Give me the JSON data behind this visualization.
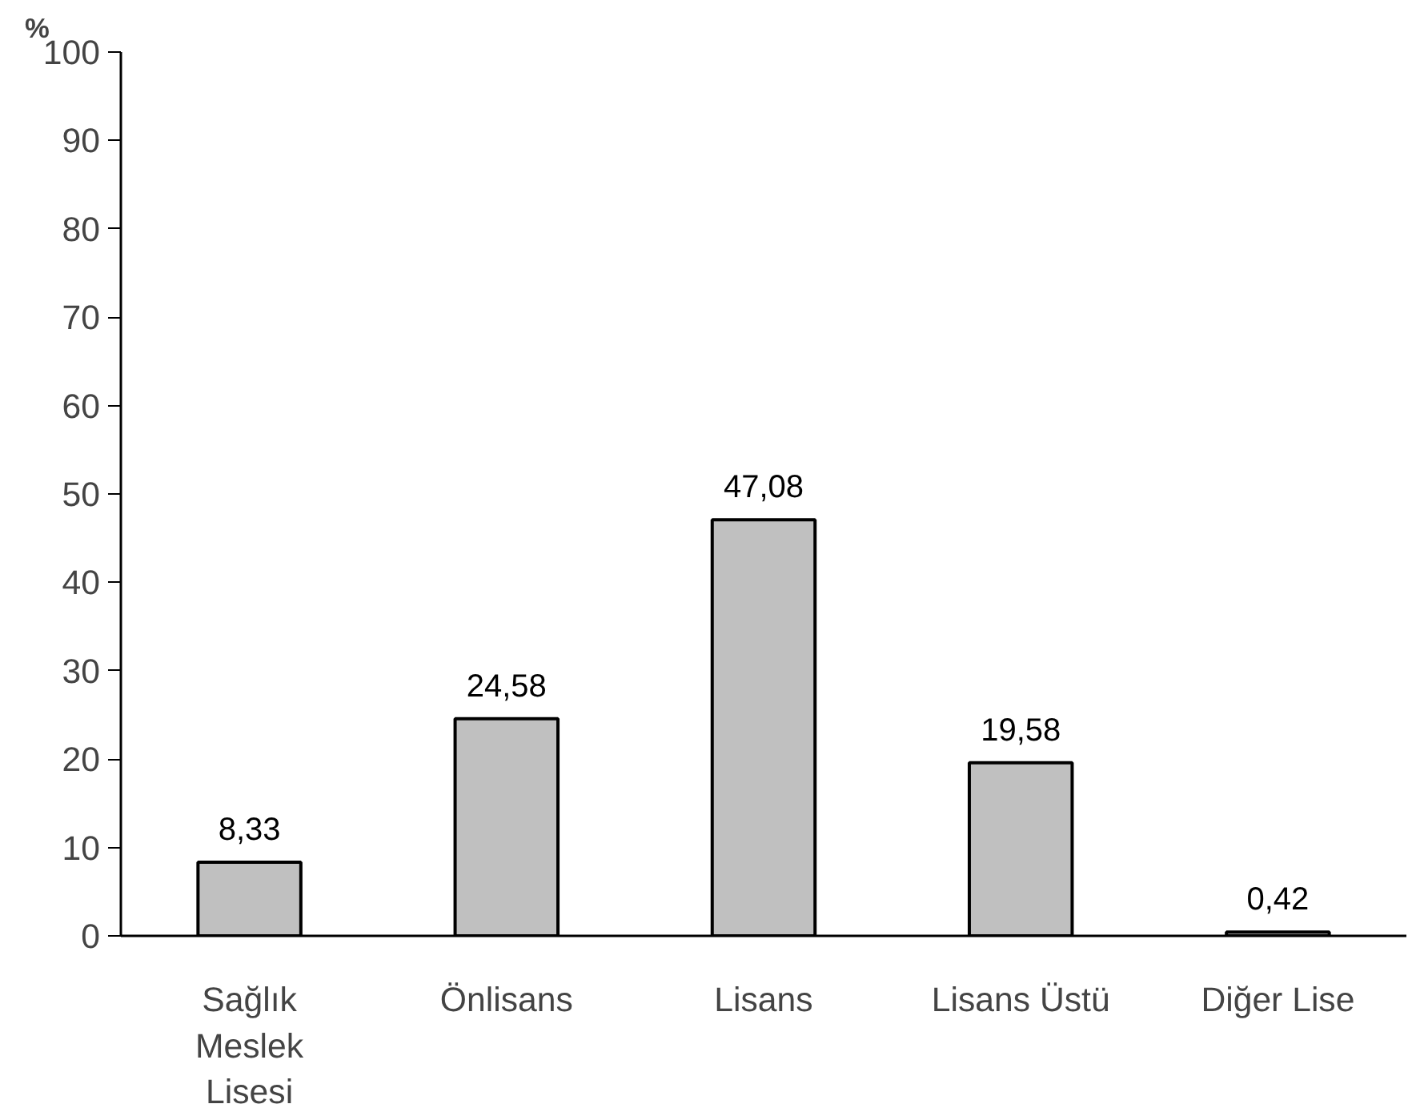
{
  "chart_data": {
    "type": "bar",
    "ylabel": "%",
    "categories": [
      "Sağlık\nMeslek\nLisesi",
      "Önlisans",
      "Lisans",
      "Lisans Üstü",
      "Diğer Lise"
    ],
    "values": [
      8.33,
      24.58,
      47.08,
      19.58,
      0.42
    ],
    "value_labels": [
      "8,33",
      "24,58",
      "47,08",
      "19,58",
      "0,42"
    ],
    "color": "#c0c0c0",
    "ylim": [
      0,
      100
    ],
    "yticks": [
      0,
      10,
      20,
      30,
      40,
      50,
      60,
      70,
      80,
      90,
      100
    ],
    "grid": false
  }
}
